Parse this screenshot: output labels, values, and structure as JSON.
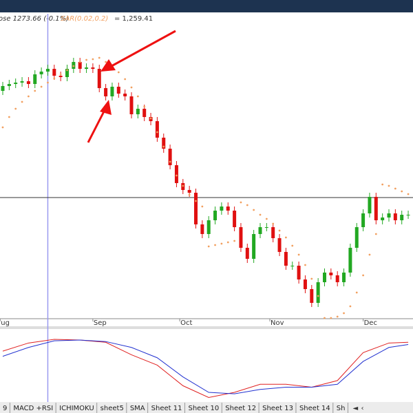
{
  "chart_data": [
    {
      "type": "candlestick",
      "legend": {
        "close": "ose 1273.66 (-0.1%)",
        "indicator": "SAR(0.02,0.2)",
        "indicator_value": "= 1,259.41"
      },
      "ylim": [
        1094,
        1315
      ],
      "up_color": "#22a822",
      "down_color": "#e01010",
      "open": [
        1259,
        1262.5,
        1264,
        1265,
        1266,
        1264,
        1271,
        1273,
        1275,
        1270,
        1269,
        1275,
        1280,
        1275,
        1276,
        1275,
        1261,
        1255,
        1262,
        1257,
        1255,
        1242,
        1246,
        1240,
        1237,
        1225,
        1217,
        1205,
        1192,
        1187,
        1185,
        1162,
        1155,
        1165,
        1172,
        1175,
        1172,
        1160,
        1145,
        1137,
        1155,
        1160,
        1160,
        1152,
        1142,
        1132,
        1132,
        1122,
        1115,
        1105,
        1120,
        1127,
        1125,
        1120,
        1127,
        1145,
        1160,
        1170,
        1182,
        1165,
        1167,
        1170,
        1165,
        1169
      ],
      "high": [
        1265.5,
        1267,
        1268,
        1269,
        1269,
        1274,
        1276,
        1278,
        1278,
        1273,
        1278,
        1283,
        1283,
        1279,
        1279,
        1278,
        1264,
        1265,
        1265,
        1260,
        1258,
        1249,
        1249,
        1243,
        1240,
        1228,
        1220,
        1208,
        1195,
        1190,
        1188,
        1165,
        1168,
        1175,
        1178,
        1178,
        1175,
        1163,
        1148,
        1158,
        1163,
        1163,
        1163,
        1155,
        1145,
        1135,
        1135,
        1125,
        1118,
        1123,
        1130,
        1130,
        1128,
        1130,
        1148,
        1163,
        1173,
        1185,
        1185,
        1170,
        1173,
        1173,
        1172,
        1172
      ],
      "low": [
        1256,
        1259.5,
        1261,
        1262,
        1261,
        1261,
        1268,
        1270,
        1267,
        1266,
        1266,
        1272,
        1272,
        1272,
        1272,
        1258,
        1252,
        1252,
        1254,
        1252,
        1239,
        1239,
        1237,
        1234,
        1222,
        1214,
        1202,
        1189,
        1184,
        1182,
        1159,
        1152,
        1152,
        1162,
        1169,
        1169,
        1157,
        1142,
        1134,
        1134,
        1152,
        1157,
        1149,
        1139,
        1129,
        1129,
        1119,
        1112,
        1102,
        1102,
        1117,
        1122,
        1117,
        1117,
        1124,
        1142,
        1157,
        1167,
        1162,
        1162,
        1164,
        1162,
        1162,
        1166
      ],
      "close": [
        1262.5,
        1264,
        1265,
        1266,
        1264,
        1271,
        1273,
        1275,
        1270,
        1269,
        1275,
        1280,
        1275,
        1276,
        1275,
        1261,
        1255,
        1262,
        1257,
        1255,
        1242,
        1246,
        1240,
        1237,
        1225,
        1217,
        1205,
        1192,
        1187,
        1185,
        1162,
        1155,
        1165,
        1172,
        1175,
        1172,
        1160,
        1145,
        1137,
        1155,
        1160,
        1160,
        1152,
        1142,
        1132,
        1132,
        1122,
        1115,
        1105,
        1120,
        1127,
        1125,
        1120,
        1127,
        1145,
        1160,
        1170,
        1182,
        1165,
        1167,
        1170,
        1165,
        1169,
        1169
      ],
      "sar": {
        "color": "#f2a060",
        "values": [
          1232.5,
          1240,
          1246,
          1251,
          1255,
          1259,
          1262,
          1265,
          1268,
          1271,
          1274,
          1277,
          1280,
          1281.5,
          1282,
          1283,
          1280,
          1277,
          1272.5,
          1267.5,
          1261.5,
          1255,
          1247.5,
          1239,
          1229,
          1218.5,
          1207.5,
          1197.5,
          1190,
          1183.5,
          1179,
          1175,
          1146,
          1147,
          1148,
          1149,
          1150,
          1178,
          1176,
          1172.5,
          1169,
          1166,
          1162.5,
          1157.5,
          1152.5,
          1146.5,
          1140,
          1132.5,
          1122.5,
          1110,
          1094,
          1094,
          1095,
          1097.5,
          1102.5,
          1112.5,
          1125,
          1140,
          1155,
          1191,
          1190,
          1188,
          1186,
          1184
        ]
      },
      "reference_line": 1181.5,
      "x_crosshair": 7,
      "months": [
        "ug",
        "Sep",
        "Oct",
        "Nov",
        "Dec"
      ]
    },
    {
      "type": "line",
      "ylim": [
        0,
        100
      ],
      "x": [
        0,
        4,
        8,
        12,
        16,
        20,
        24,
        28,
        32,
        36,
        40,
        44,
        48,
        52,
        56,
        60,
        63
      ],
      "series": [
        {
          "color": "#e02020",
          "values": [
            70,
            81,
            86,
            85,
            82,
            65,
            51,
            23,
            7,
            14,
            25,
            25,
            21,
            30,
            68,
            81,
            82
          ]
        },
        {
          "color": "#2030d0",
          "values": [
            63,
            75,
            84,
            85,
            83,
            75,
            61,
            35,
            14,
            12,
            18,
            21,
            21,
            25,
            56,
            75,
            79
          ]
        }
      ]
    }
  ],
  "tabs": [
    "9",
    "MACD +RSI",
    "ICHIMOKU",
    "sheet5",
    "SMA",
    "Sheet 11",
    "Sheet 10",
    "Sheet 12",
    "Sheet 13",
    "Sheet 14",
    "Sh"
  ]
}
